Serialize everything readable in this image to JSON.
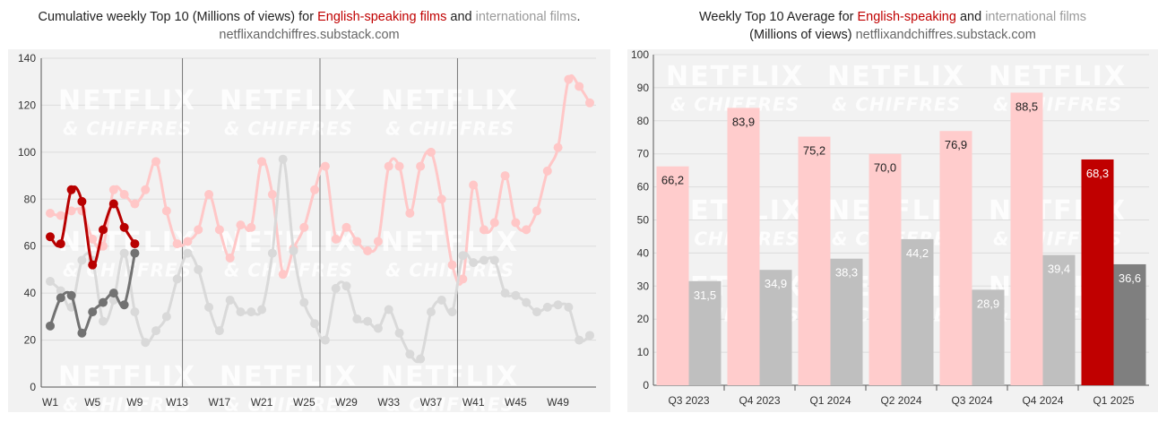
{
  "left": {
    "title_part1": "Cumulative weekly Top 10 (Millions of views) for ",
    "title_red": "English-speaking films",
    "title_part2": " and ",
    "title_grey": "international films",
    "title_part3": ".",
    "source": "netflixandchiffres.substack.com"
  },
  "right": {
    "title_part1": "Weekly Top 10 Average for ",
    "title_red": "English-speaking",
    "title_part2": " and ",
    "title_grey": "international films",
    "title_line2": "(Millions of views) ",
    "source": "netflixandchiffres.substack.com"
  },
  "watermark": {
    "line1": "NETFLIX",
    "line2": "& CHIFFRES"
  },
  "colors": {
    "english_current": "#b80000",
    "english_previous": "#ffc7c7",
    "intl_current": "#727272",
    "intl_previous": "#d9d9d9",
    "bar_english": "#ffcccc",
    "bar_intl": "#bfbfbf",
    "bar_english_current": "#c00000",
    "bar_intl_current": "#7f7f7f",
    "plot_bg": "#f2f2f2"
  },
  "chart_data": [
    {
      "type": "line",
      "ylim": [
        0,
        140
      ],
      "yticks": [
        0,
        20,
        40,
        60,
        80,
        100,
        120,
        140
      ],
      "xlim": [
        1,
        52
      ],
      "xticks": [
        1,
        5,
        9,
        13,
        17,
        21,
        25,
        29,
        33,
        37,
        41,
        45,
        49
      ],
      "xticklabels": [
        "W1",
        "W5",
        "W9",
        "W13",
        "W17",
        "W21",
        "W25",
        "W29",
        "W33",
        "W37",
        "W41",
        "W45",
        "W49"
      ],
      "quarter_lines": [
        13.5,
        26.5,
        39.5
      ],
      "series": [
        {
          "key": "english_previous",
          "x": [
            1,
            2,
            3,
            4,
            5,
            6,
            7,
            8,
            9,
            10,
            11,
            12,
            13,
            14,
            15,
            16,
            17,
            18,
            19,
            20,
            21,
            22,
            23,
            24,
            25,
            26,
            27,
            28,
            29,
            30,
            31,
            32,
            33,
            34,
            35,
            36,
            37,
            38,
            39,
            40,
            41,
            42,
            43,
            44,
            45,
            46,
            47,
            48,
            49,
            50,
            51,
            52
          ],
          "values": [
            74,
            73,
            75,
            75,
            63,
            60,
            84,
            82,
            78,
            84,
            96,
            75,
            61,
            62,
            67,
            82,
            67,
            55,
            69,
            68,
            96,
            82,
            48,
            59,
            68,
            84,
            94,
            63,
            68,
            62,
            58,
            62,
            94,
            94,
            74,
            94,
            100,
            80,
            52,
            46,
            86,
            67,
            70,
            90,
            70,
            67,
            75,
            92,
            102,
            131,
            128,
            121
          ]
        },
        {
          "key": "intl_previous",
          "x": [
            1,
            2,
            3,
            4,
            5,
            6,
            7,
            8,
            9,
            10,
            11,
            12,
            13,
            14,
            15,
            16,
            17,
            18,
            19,
            20,
            21,
            22,
            23,
            24,
            25,
            26,
            27,
            28,
            29,
            30,
            31,
            32,
            33,
            34,
            35,
            36,
            37,
            38,
            39,
            40,
            41,
            42,
            43,
            44,
            45,
            46,
            47,
            48,
            49,
            50,
            51,
            52
          ],
          "values": [
            45,
            41,
            34,
            54,
            54,
            28,
            37,
            57,
            32,
            19,
            24,
            30,
            46,
            57,
            50,
            34,
            24,
            37,
            32,
            32,
            33,
            57,
            97,
            58,
            36,
            27,
            20,
            42,
            43,
            29,
            28,
            25,
            33,
            23,
            14,
            12,
            32,
            37,
            32,
            56,
            53,
            54,
            54,
            40,
            39,
            36,
            32,
            34,
            35,
            34,
            20,
            22
          ]
        },
        {
          "key": "intl_current",
          "x": [
            1,
            2,
            3,
            4,
            5,
            6,
            7,
            8,
            9
          ],
          "values": [
            26,
            38,
            39,
            23,
            32,
            36,
            40,
            35,
            57
          ]
        },
        {
          "key": "english_current",
          "x": [
            1,
            2,
            3,
            4,
            5,
            6,
            7,
            8,
            9
          ],
          "values": [
            64,
            61,
            84,
            79,
            52,
            67,
            78,
            68,
            61
          ]
        }
      ]
    },
    {
      "type": "bar",
      "ylim": [
        0,
        100
      ],
      "yticks": [
        0,
        10,
        20,
        30,
        40,
        50,
        60,
        70,
        80,
        90,
        100
      ],
      "categories": [
        "Q3 2023",
        "Q4 2023",
        "Q1 2024",
        "Q2 2024",
        "Q3 2024",
        "Q4 2024",
        "Q1 2025"
      ],
      "series": [
        {
          "key": "english",
          "values": [
            66.2,
            83.9,
            75.2,
            70.0,
            76.9,
            88.5,
            68.3
          ],
          "labels": [
            "66,2",
            "83,9",
            "75,2",
            "70,0",
            "76,9",
            "88,5",
            "68,3"
          ]
        },
        {
          "key": "intl",
          "values": [
            31.5,
            34.9,
            38.3,
            44.2,
            28.9,
            39.4,
            36.6
          ],
          "labels": [
            "31,5",
            "34,9",
            "38,3",
            "44,2",
            "28,9",
            "39,4",
            "36,6"
          ]
        }
      ]
    }
  ]
}
